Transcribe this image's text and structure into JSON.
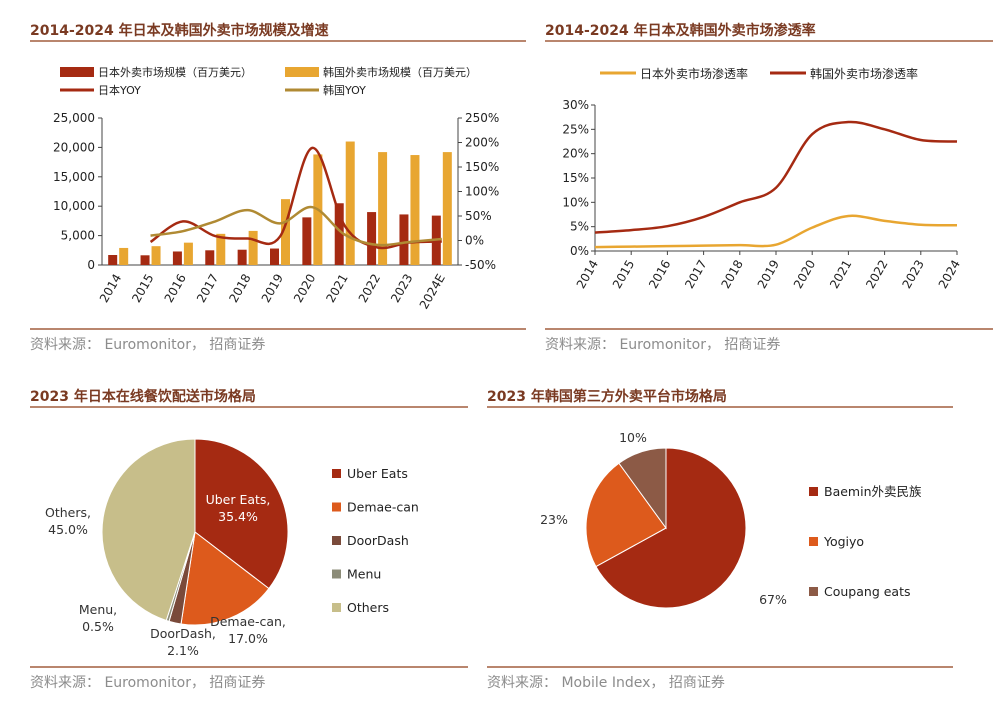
{
  "panels": [
    {
      "title": "2014-2024 年日本及韩国外卖市场规模及增速",
      "source": "资料来源：  Euromonitor， 招商证券"
    },
    {
      "title": "2014-2024 年日本及韩国外卖市场渗透率",
      "source": "资料来源：  Euromonitor， 招商证券"
    },
    {
      "title": "2023 年日本在线餐饮配送市场格局",
      "source": "资料来源：  Euromonitor， 招商证券"
    },
    {
      "title": "2023 年韩国第三方外卖平台市场格局",
      "source": "资料来源：  Mobile Index， 招商证券"
    }
  ],
  "chart_data": [
    {
      "type": "bar",
      "categories": [
        "2014",
        "2015",
        "2016",
        "2017",
        "2018",
        "2019",
        "2020",
        "2021",
        "2022",
        "2023",
        "2024E"
      ],
      "series": [
        {
          "name": "日本外卖市场规模（百万美元）",
          "kind": "bar",
          "axis": "left",
          "color": "#a52a12",
          "values": [
            1700,
            1650,
            2300,
            2500,
            2600,
            2800,
            8100,
            10500,
            9000,
            8600,
            8400
          ]
        },
        {
          "name": "韩国外卖市场规模（百万美元）",
          "kind": "bar",
          "axis": "right-bars",
          "color": "#e8a631",
          "values": [
            2900,
            3200,
            3800,
            5300,
            5800,
            11200,
            18800,
            21000,
            19200,
            18700,
            19200
          ]
        },
        {
          "name": "日本YOY",
          "kind": "line",
          "axis": "right",
          "color": "#a52a12",
          "values": [
            null,
            -3,
            39,
            9,
            4,
            8,
            189,
            30,
            -14,
            -4,
            -2
          ]
        },
        {
          "name": "韩国YOY",
          "kind": "line",
          "axis": "right",
          "color": "#b08a33",
          "values": [
            null,
            10,
            19,
            39,
            62,
            35,
            68,
            12,
            -9,
            -3,
            3
          ]
        }
      ],
      "left_axis": {
        "ylim": [
          0,
          25000
        ],
        "ticks": [
          "0",
          "5,000",
          "10,000",
          "15,000",
          "20,000",
          "25,000"
        ]
      },
      "right_axis": {
        "ylim": [
          -50,
          250
        ],
        "ticks": [
          "-50%",
          "0%",
          "50%",
          "100%",
          "150%",
          "200%",
          "250%"
        ]
      },
      "legend_position": "top"
    },
    {
      "type": "line",
      "x": [
        "2014",
        "2015",
        "2016",
        "2017",
        "2018",
        "2019",
        "2020",
        "2021",
        "2022",
        "2023",
        "2024"
      ],
      "series": [
        {
          "name": "日本外卖市场渗透率",
          "color": "#e8a631",
          "values": [
            0.8,
            0.9,
            1.0,
            1.1,
            1.2,
            1.3,
            4.8,
            7.2,
            6.2,
            5.4,
            5.3
          ]
        },
        {
          "name": "韩国外卖市场渗透率",
          "color": "#a52a12",
          "values": [
            3.8,
            4.3,
            5.1,
            7.0,
            10.0,
            13.0,
            24.0,
            26.5,
            25.0,
            22.8,
            22.5
          ]
        }
      ],
      "ylim": [
        0,
        30
      ],
      "yticks": [
        "0%",
        "5%",
        "10%",
        "15%",
        "20%",
        "25%",
        "30%"
      ],
      "legend_position": "top"
    },
    {
      "type": "pie",
      "slices": [
        {
          "label": "Uber Eats",
          "value": 35.4,
          "color": "#a52a12",
          "text": [
            "Uber Eats,",
            "35.4%"
          ]
        },
        {
          "label": "Demae-can",
          "value": 17.0,
          "color": "#dd5a1c",
          "text": [
            "Demae-can,",
            "17.0%"
          ]
        },
        {
          "label": "DoorDash",
          "value": 2.1,
          "color": "#7a4a3a",
          "text": [
            "DoorDash,",
            "2.1%"
          ]
        },
        {
          "label": "Menu",
          "value": 0.5,
          "color": "#8c8c78",
          "text": [
            "Menu,",
            "0.5%"
          ]
        },
        {
          "label": "Others",
          "value": 45.0,
          "color": "#c7be8a",
          "text": [
            "Others,",
            "45.0%"
          ]
        }
      ],
      "legend_position": "right"
    },
    {
      "type": "pie",
      "slices": [
        {
          "label": "Baemin外卖民族",
          "value": 67,
          "color": "#a52a12",
          "text": [
            "67%"
          ]
        },
        {
          "label": "Yogiyo",
          "value": 23,
          "color": "#dd5a1c",
          "text": [
            "23%"
          ]
        },
        {
          "label": "Coupang eats",
          "value": 10,
          "color": "#8c5a46",
          "text": [
            "10%"
          ]
        }
      ],
      "legend_position": "right"
    }
  ]
}
